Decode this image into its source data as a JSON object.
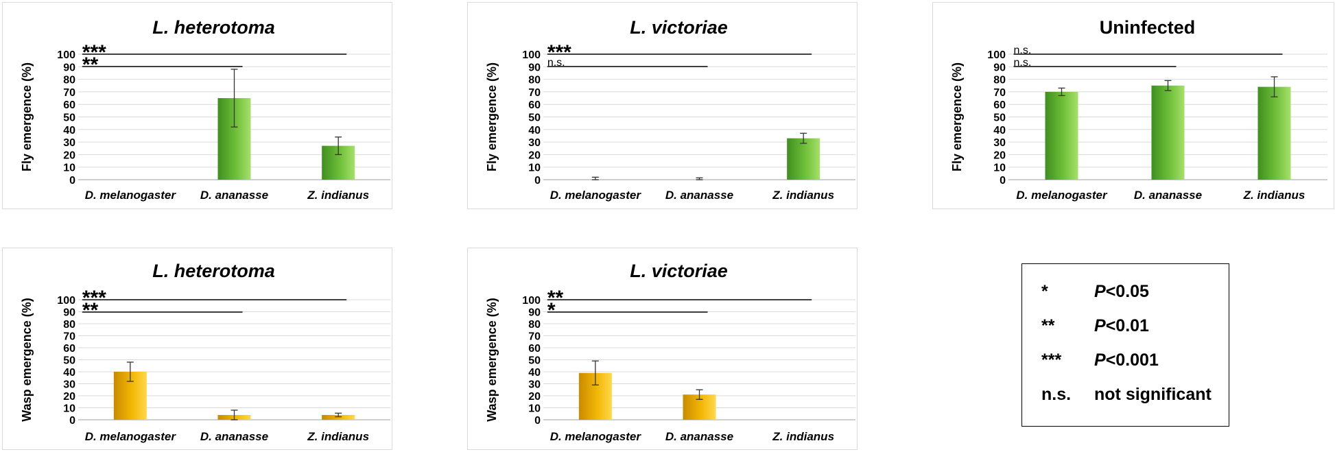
{
  "colors": {
    "fly_bar": "#6fbf3a",
    "wasp_bar": "#f2b705",
    "grid": "#d9d9d9",
    "axis": "#bfbfbf"
  },
  "chart_data": [
    {
      "type": "bar",
      "title": "L. heterotoma",
      "title_italic": true,
      "ylabel": "Fly emergence (%)",
      "categories": [
        "D. melanogaster",
        "D. ananasse",
        "Z. indianus"
      ],
      "values": [
        0,
        65,
        27
      ],
      "errors": [
        0,
        23,
        7
      ],
      "ylim": [
        0,
        100
      ],
      "yticks": [
        "0",
        "10",
        "20",
        "30",
        "40",
        "50",
        "60",
        "70",
        "80",
        "90",
        "100"
      ],
      "bar_color": "fly",
      "grid": true,
      "significance": [
        {
          "label": "***",
          "from": 0,
          "to": 2
        },
        {
          "label": "**",
          "from": 0,
          "to": 1
        }
      ]
    },
    {
      "type": "bar",
      "title": "L. victoriae",
      "title_italic": true,
      "ylabel": "Fly emergence (%)",
      "categories": [
        "D. melanogaster",
        "D. ananasse",
        "Z. indianus"
      ],
      "values": [
        0,
        0,
        33
      ],
      "errors": [
        2,
        1.5,
        4
      ],
      "ylim": [
        0,
        100
      ],
      "yticks": [
        "0",
        "10",
        "20",
        "30",
        "40",
        "50",
        "60",
        "70",
        "80",
        "90",
        "100"
      ],
      "bar_color": "fly",
      "grid": true,
      "significance": [
        {
          "label": "***",
          "from": 0,
          "to": 2
        },
        {
          "label": "n.s.",
          "from": 0,
          "to": 1
        }
      ]
    },
    {
      "type": "bar",
      "title": "Uninfected",
      "title_italic": false,
      "ylabel": "Fly emergence (%)",
      "categories": [
        "D. melanogaster",
        "D. ananasse",
        "Z. indianus"
      ],
      "values": [
        70,
        75,
        74
      ],
      "errors": [
        3,
        4,
        8
      ],
      "ylim": [
        0,
        100
      ],
      "yticks": [
        "0",
        "10",
        "20",
        "30",
        "40",
        "50",
        "60",
        "70",
        "80",
        "90",
        "100"
      ],
      "bar_color": "fly",
      "grid": true,
      "significance": [
        {
          "label": "n.s.",
          "from": 0,
          "to": 2
        },
        {
          "label": "n.s.",
          "from": 0,
          "to": 1
        }
      ]
    },
    {
      "type": "bar",
      "title": "L. heterotoma",
      "title_italic": true,
      "ylabel": "Wasp emergence (%)",
      "categories": [
        "D. melanogaster",
        "D. ananasse",
        "Z. indianus"
      ],
      "values": [
        40,
        4,
        4
      ],
      "errors": [
        8,
        4,
        1.5
      ],
      "ylim": [
        0,
        100
      ],
      "yticks": [
        "0",
        "10",
        "20",
        "30",
        "40",
        "50",
        "60",
        "70",
        "80",
        "90",
        "100"
      ],
      "bar_color": "wasp",
      "grid": true,
      "significance": [
        {
          "label": "***",
          "from": 0,
          "to": 2
        },
        {
          "label": "**",
          "from": 0,
          "to": 1
        }
      ]
    },
    {
      "type": "bar",
      "title": "L. victoriae",
      "title_italic": true,
      "ylabel": "Wasp emergence (%)",
      "categories": [
        "D. melanogaster",
        "D. ananasse",
        "Z. indianus"
      ],
      "values": [
        39,
        21,
        0
      ],
      "errors": [
        10,
        4,
        0
      ],
      "ylim": [
        0,
        100
      ],
      "yticks": [
        "0",
        "10",
        "20",
        "30",
        "40",
        "50",
        "60",
        "70",
        "80",
        "90",
        "100"
      ],
      "bar_color": "wasp",
      "grid": true,
      "significance": [
        {
          "label": "**",
          "from": 0,
          "to": 2
        },
        {
          "label": "*",
          "from": 0,
          "to": 1
        }
      ]
    }
  ],
  "legend": {
    "rows": [
      {
        "symbol": "*",
        "prefix": "P",
        "text": "<0.05"
      },
      {
        "symbol": "**",
        "prefix": "P",
        "text": "<0.01"
      },
      {
        "symbol": "***",
        "prefix": "P",
        "text": "<0.001"
      },
      {
        "symbol": "n.s.",
        "prefix": "",
        "text": "not significant"
      }
    ]
  }
}
